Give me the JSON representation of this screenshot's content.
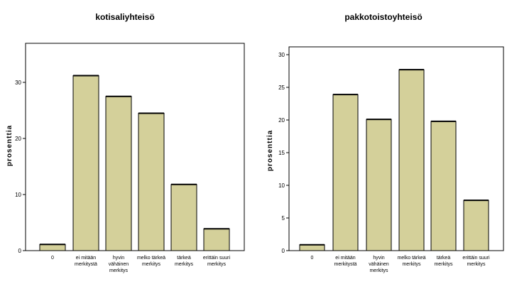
{
  "chart_data": [
    {
      "type": "bar",
      "title": "kotisaliyhteisö",
      "ylabel": "prosenttia",
      "ylim": [
        0,
        35
      ],
      "yticks": [
        0,
        10,
        20,
        30
      ],
      "categories": [
        [
          "0"
        ],
        [
          "ei mitään",
          "merkitystä"
        ],
        [
          "hyvin",
          "vähäinen",
          "merkitys"
        ],
        [
          "melko tärkeä",
          "merkitys"
        ],
        [
          "tärkeä",
          "merkitys"
        ],
        [
          "erittäin suuri",
          "merkitys"
        ]
      ],
      "values": [
        1.1,
        31.2,
        27.5,
        24.5,
        11.8,
        3.9
      ],
      "bar_color": "#d4d09a"
    },
    {
      "type": "bar",
      "title": "pakkotoistoyhteisö",
      "ylabel": "prosenttia",
      "ylim": [
        0,
        31
      ],
      "yticks": [
        0,
        5,
        10,
        15,
        20,
        25,
        30
      ],
      "categories": [
        [
          "0"
        ],
        [
          "ei mitään",
          "merkitystä"
        ],
        [
          "hyvin",
          "vähäinen",
          "merkitys"
        ],
        [
          "melko tärkeä",
          "merkitys"
        ],
        [
          "tärkeä",
          "merkitys"
        ],
        [
          "erittäin suuri",
          "merkitys"
        ]
      ],
      "values": [
        0.9,
        23.9,
        20.1,
        27.7,
        19.8,
        7.7
      ],
      "bar_color": "#d4d09a"
    }
  ]
}
